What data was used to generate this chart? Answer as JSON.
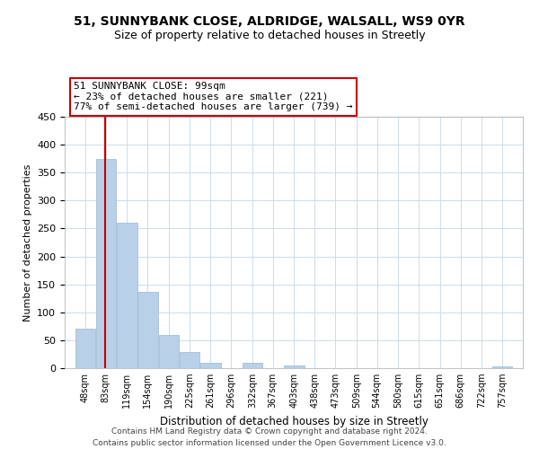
{
  "title": "51, SUNNYBANK CLOSE, ALDRIDGE, WALSALL, WS9 0YR",
  "subtitle": "Size of property relative to detached houses in Streetly",
  "xlabel": "Distribution of detached houses by size in Streetly",
  "ylabel": "Number of detached properties",
  "bar_labels": [
    "48sqm",
    "83sqm",
    "119sqm",
    "154sqm",
    "190sqm",
    "225sqm",
    "261sqm",
    "296sqm",
    "332sqm",
    "367sqm",
    "403sqm",
    "438sqm",
    "473sqm",
    "509sqm",
    "544sqm",
    "580sqm",
    "615sqm",
    "651sqm",
    "686sqm",
    "722sqm",
    "757sqm"
  ],
  "bar_values": [
    70,
    375,
    260,
    137,
    60,
    29,
    10,
    0,
    10,
    0,
    5,
    0,
    0,
    0,
    0,
    0,
    0,
    0,
    0,
    0,
    3
  ],
  "bar_color": "#b8d0e8",
  "bar_edge_color": "#b8d0e8",
  "ylim": [
    0,
    450
  ],
  "yticks": [
    0,
    50,
    100,
    150,
    200,
    250,
    300,
    350,
    400,
    450
  ],
  "property_line_color": "#cc0000",
  "annotation_title": "51 SUNNYBANK CLOSE: 99sqm",
  "annotation_line1": "← 23% of detached houses are smaller (221)",
  "annotation_line2": "77% of semi-detached houses are larger (739) →",
  "annotation_box_color": "#ffffff",
  "annotation_box_edge": "#cc0000",
  "footer_line1": "Contains HM Land Registry data © Crown copyright and database right 2024.",
  "footer_line2": "Contains public sector information licensed under the Open Government Licence v3.0.",
  "bin_edges": [
    48,
    83,
    119,
    154,
    190,
    225,
    261,
    296,
    332,
    367,
    403,
    438,
    473,
    509,
    544,
    580,
    615,
    651,
    686,
    722,
    757
  ],
  "property_size": 99,
  "background_color": "#ffffff",
  "grid_color": "#ccdcec"
}
